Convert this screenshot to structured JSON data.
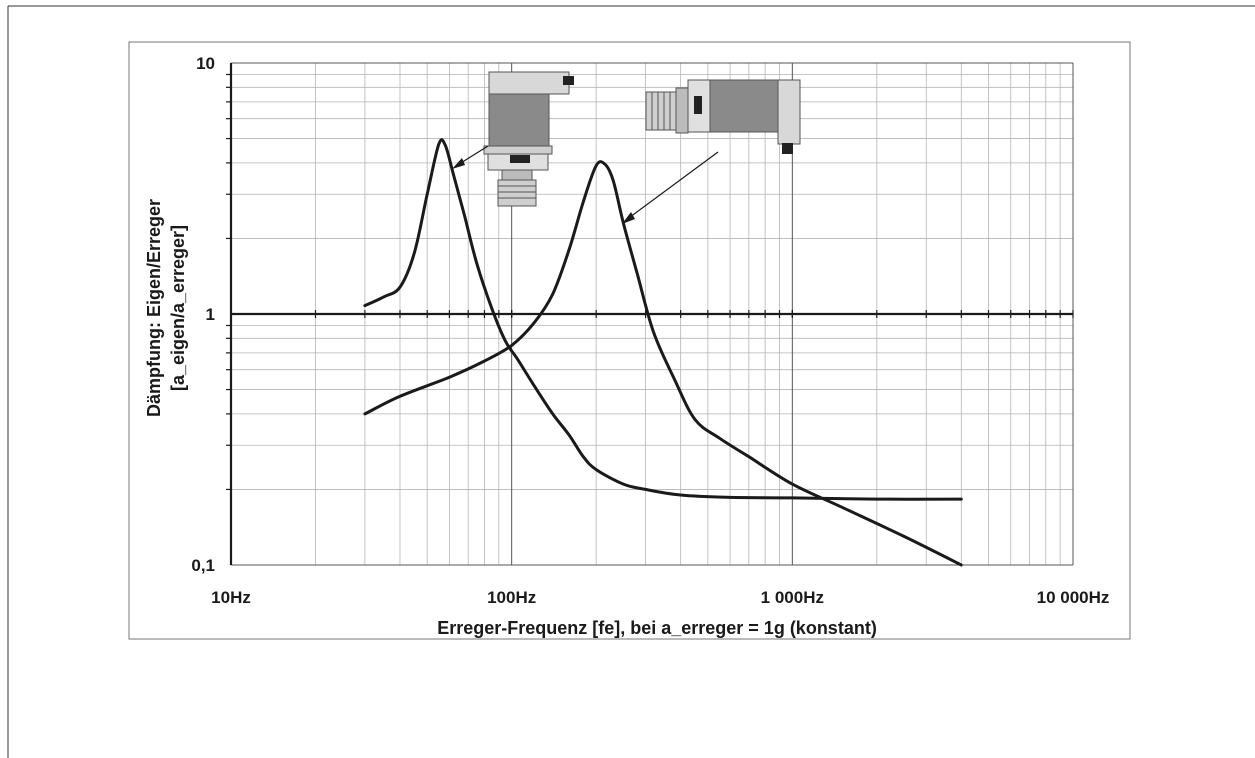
{
  "chart_data": {
    "type": "line",
    "title": "",
    "xlabel": "Erreger-Frequenz [fe], bei a_erreger = 1g (konstant)",
    "ylabel_line1": "Dämpfung: Eigen/Erreger",
    "ylabel_line2": "[a_eigen/a_erreger]",
    "x_scale": "log",
    "y_scale": "log",
    "xlim": [
      10,
      10000
    ],
    "ylim": [
      0.1,
      10
    ],
    "grid": true,
    "legend": "none",
    "x_tick_values": [
      10,
      100,
      1000,
      10000
    ],
    "x_tick_labels": [
      "10Hz",
      "100Hz",
      "1 000Hz",
      "10 000Hz"
    ],
    "y_tick_values": [
      0.1,
      1,
      10
    ],
    "y_tick_labels": [
      "0,1",
      "1",
      "10"
    ],
    "series": [
      {
        "values": [
          [
            30,
            1.08
          ],
          [
            35,
            1.17
          ],
          [
            40,
            1.28
          ],
          [
            45,
            1.75
          ],
          [
            50,
            3.0
          ],
          [
            55,
            4.75
          ],
          [
            58,
            4.7
          ],
          [
            62,
            3.6
          ],
          [
            68,
            2.45
          ],
          [
            75,
            1.6
          ],
          [
            85,
            1.05
          ],
          [
            95,
            0.78
          ],
          [
            105,
            0.66
          ],
          [
            120,
            0.52
          ],
          [
            140,
            0.4
          ],
          [
            160,
            0.33
          ],
          [
            180,
            0.27
          ],
          [
            200,
            0.24
          ],
          [
            250,
            0.21
          ],
          [
            300,
            0.2
          ],
          [
            400,
            0.19
          ],
          [
            600,
            0.186
          ],
          [
            1000,
            0.185
          ],
          [
            2000,
            0.183
          ],
          [
            4000,
            0.183
          ]
        ]
      },
      {
        "values": [
          [
            30,
            0.4
          ],
          [
            40,
            0.47
          ],
          [
            60,
            0.56
          ],
          [
            80,
            0.65
          ],
          [
            100,
            0.75
          ],
          [
            120,
            0.92
          ],
          [
            140,
            1.2
          ],
          [
            160,
            1.8
          ],
          [
            180,
            2.8
          ],
          [
            200,
            3.9
          ],
          [
            215,
            3.95
          ],
          [
            230,
            3.4
          ],
          [
            250,
            2.3
          ],
          [
            280,
            1.45
          ],
          [
            320,
            0.85
          ],
          [
            380,
            0.55
          ],
          [
            450,
            0.38
          ],
          [
            550,
            0.32
          ],
          [
            700,
            0.27
          ],
          [
            1000,
            0.21
          ],
          [
            1500,
            0.17
          ],
          [
            2500,
            0.13
          ],
          [
            4000,
            0.1
          ]
        ]
      }
    ],
    "line_color": "#1a1a1a"
  }
}
